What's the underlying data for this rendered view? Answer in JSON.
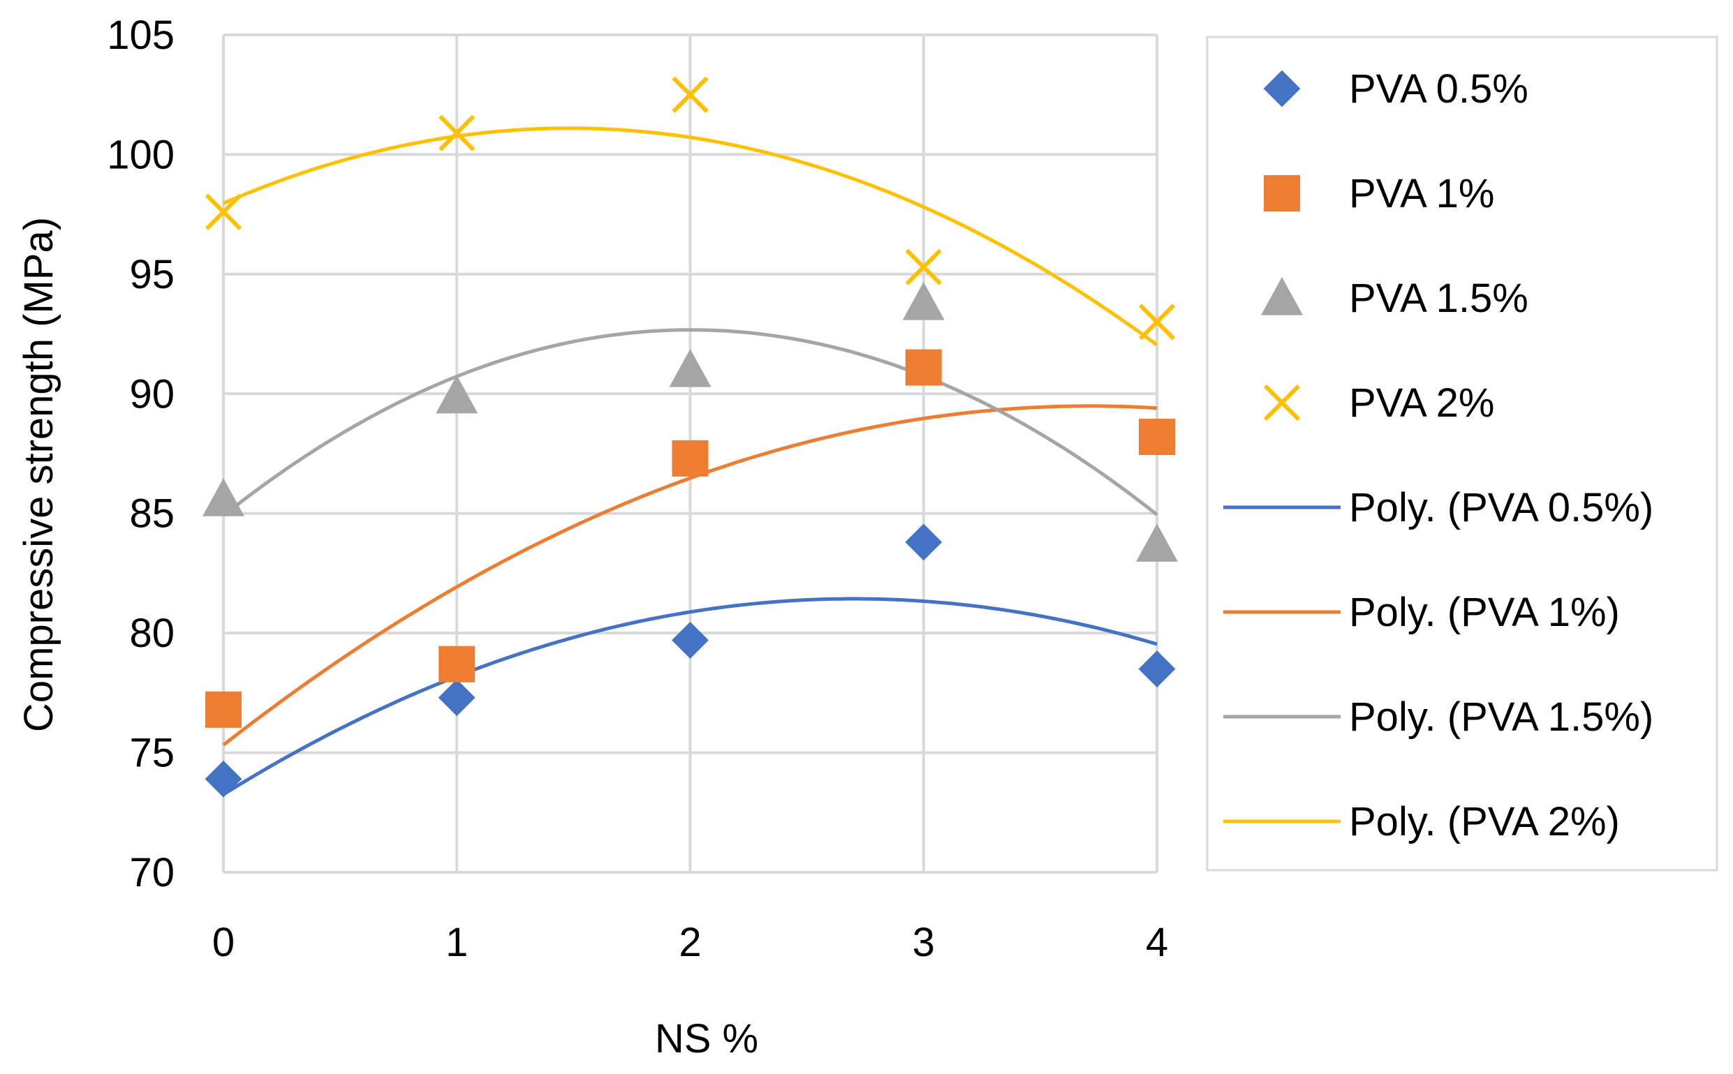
{
  "chart_data": {
    "type": "scatter",
    "title": "",
    "xlabel": "NS %",
    "ylabel": "Compressive strength (MPa)",
    "xlim": [
      0,
      4
    ],
    "ylim": [
      70,
      105
    ],
    "xticks": [
      0,
      1,
      2,
      3,
      4
    ],
    "yticks": [
      70,
      75,
      80,
      85,
      90,
      95,
      100,
      105
    ],
    "grid": true,
    "legend_position": "right",
    "series": [
      {
        "name": "PVA 0.5%",
        "marker": "diamond",
        "color": "#4472C4",
        "x": [
          0,
          1,
          2,
          3,
          4
        ],
        "y": [
          73.9,
          77.3,
          79.7,
          83.8,
          78.5
        ]
      },
      {
        "name": "PVA 1%",
        "marker": "square",
        "color": "#ED7D31",
        "x": [
          0,
          1,
          2,
          3,
          4
        ],
        "y": [
          76.8,
          78.7,
          87.3,
          91.1,
          88.2
        ]
      },
      {
        "name": "PVA 1.5%",
        "marker": "triangle",
        "color": "#A5A5A5",
        "x": [
          0,
          1,
          2,
          3,
          4
        ],
        "y": [
          85.6,
          89.9,
          91.0,
          93.8,
          83.7
        ]
      },
      {
        "name": "PVA 2%",
        "marker": "x",
        "color": "#FFC000",
        "x": [
          0,
          1,
          2,
          3,
          4
        ],
        "y": [
          97.6,
          100.9,
          102.5,
          95.3,
          93.0
        ]
      }
    ],
    "trendlines": [
      {
        "name": "Poly. (PVA 0.5%)",
        "color": "#4472C4",
        "order": 2,
        "of_series": "PVA 0.5%"
      },
      {
        "name": "Poly. (PVA 1%)",
        "color": "#ED7D31",
        "order": 2,
        "of_series": "PVA 1%"
      },
      {
        "name": "Poly. (PVA 1.5%)",
        "color": "#A5A5A5",
        "order": 2,
        "of_series": "PVA 1.5%"
      },
      {
        "name": "Poly. (PVA 2%)",
        "color": "#FFC000",
        "order": 2,
        "of_series": "PVA 2%"
      }
    ]
  }
}
